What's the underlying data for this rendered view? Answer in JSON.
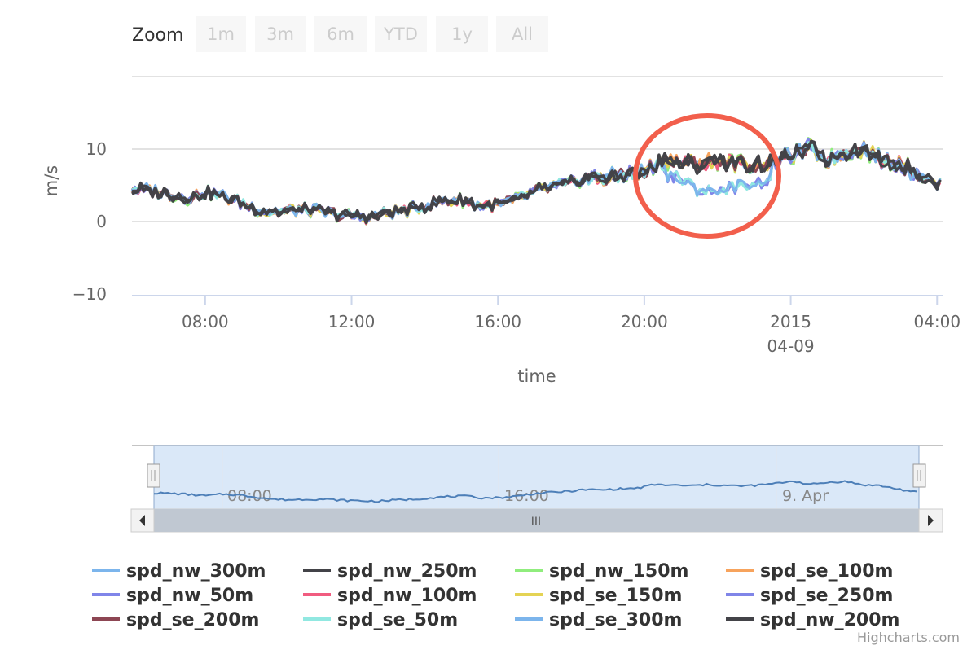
{
  "range_selector": {
    "label": "Zoom",
    "buttons": [
      "1m",
      "3m",
      "6m",
      "YTD",
      "1y",
      "All"
    ]
  },
  "navigator": {
    "labels": [
      "08:00",
      "16:00",
      "9. Apr"
    ],
    "scroll_grip": "III",
    "left_arrow_icon": "arrow-left-icon",
    "right_arrow_icon": "arrow-right-icon"
  },
  "credits": "Highcharts.com",
  "annotation": {
    "shape": "ellipse",
    "color": "#f25f4c"
  },
  "chart_data": {
    "type": "line",
    "title": "",
    "xlabel": "time",
    "ylabel": "m/s",
    "ylim": [
      -10,
      20
    ],
    "yticks": [
      "10",
      "0",
      "−10"
    ],
    "xticks": [
      {
        "label": "08:00",
        "h": 8
      },
      {
        "label": "12:00",
        "h": 12
      },
      {
        "label": "16:00",
        "h": 16
      },
      {
        "label": "20:00",
        "h": 20
      },
      {
        "label": "2015",
        "sublabel": "04-09",
        "h": 24
      },
      {
        "label": "04:00",
        "h": 28
      }
    ],
    "x_range_hours": [
      6,
      28.15
    ],
    "grid": true,
    "legend_position": "bottom",
    "anchors": {
      "hours": [
        6,
        6.5,
        7,
        7.5,
        8,
        8.5,
        9,
        9.5,
        10,
        10.5,
        11,
        11.5,
        12,
        12.5,
        13,
        13.5,
        14,
        14.5,
        15,
        15.5,
        16,
        16.5,
        17,
        17.5,
        18,
        18.5,
        19,
        19.5,
        20,
        20.5,
        21,
        21.5,
        22,
        22.5,
        23,
        23.5,
        24,
        24.5,
        25,
        25.5,
        26,
        26.5,
        27,
        27.5,
        28
      ],
      "base": [
        4.5,
        4.3,
        3.8,
        3.2,
        4.0,
        3.5,
        2.5,
        1.5,
        1.3,
        1.6,
        1.5,
        1.0,
        0.8,
        0.6,
        1.2,
        1.5,
        2.2,
        2.8,
        3.0,
        2.2,
        2.3,
        3.0,
        4.2,
        4.8,
        5.3,
        6.1,
        6.0,
        6.5,
        6.8,
        8.5,
        8.2,
        7.9,
        8.4,
        8.1,
        7.8,
        8.2,
        9.0,
        10.2,
        8.5,
        9.5,
        10.0,
        8.4,
        8.0,
        6.5,
        5.0
      ],
      "low_wind": [
        6.8,
        5.8,
        4.3,
        4.2,
        4.8,
        5.2,
        5.9
      ]
    },
    "series": [
      {
        "name": "spd_nw_300m",
        "color": "#7cb5ec",
        "values_group": "high"
      },
      {
        "name": "spd_nw_250m",
        "color": "#434348",
        "values_group": "high"
      },
      {
        "name": "spd_nw_150m",
        "color": "#90ed7d",
        "values_group": "high"
      },
      {
        "name": "spd_se_100m",
        "color": "#f7a35c",
        "values_group": "high"
      },
      {
        "name": "spd_nw_50m",
        "color": "#8085e9",
        "values_group": "low"
      },
      {
        "name": "spd_nw_100m",
        "color": "#f15c80",
        "values_group": "high"
      },
      {
        "name": "spd_se_150m",
        "color": "#e4d354",
        "values_group": "high"
      },
      {
        "name": "spd_se_250m",
        "color": "#8085e8",
        "values_group": "low"
      },
      {
        "name": "spd_se_200m",
        "color": "#8d4653",
        "values_group": "high"
      },
      {
        "name": "spd_se_50m",
        "color": "#91e8e1",
        "values_group": "low"
      },
      {
        "name": "spd_se_300m",
        "color": "#7cb5ec",
        "values_group": "low"
      },
      {
        "name": "spd_nw_200m",
        "color": "#434348",
        "values_group": "high"
      }
    ]
  }
}
